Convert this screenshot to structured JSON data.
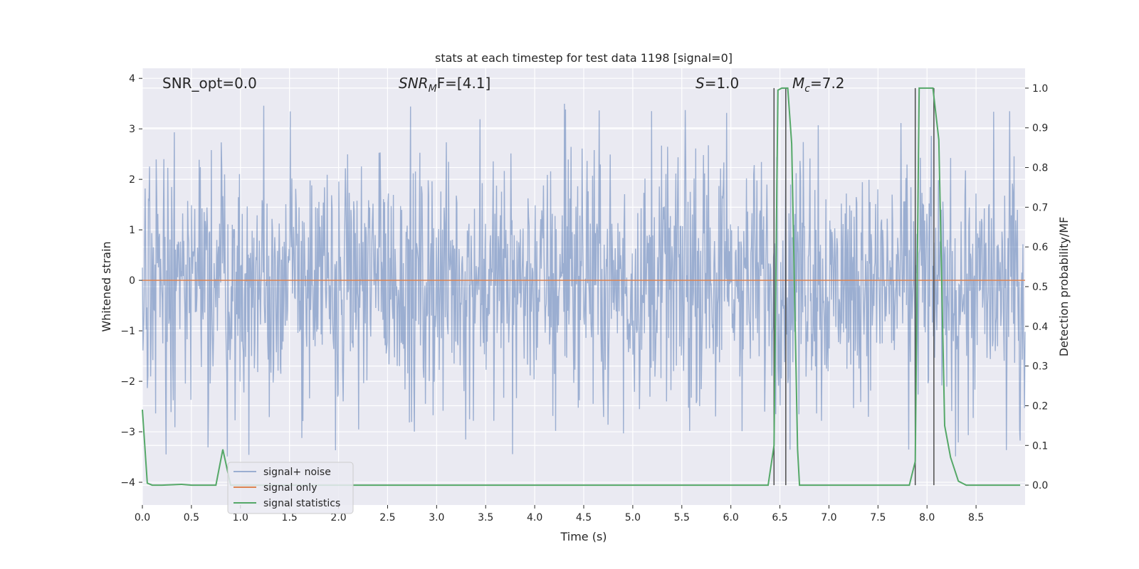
{
  "chart_data": {
    "type": "line",
    "title": "stats at each timestep for test data 1198 [signal=0]",
    "xlabel": "Time (s)",
    "ylabel": "Whitened strain",
    "y2label": "Detection probability/MF",
    "xlim": [
      0.0,
      9.0
    ],
    "ylim": [
      -4.45,
      4.2
    ],
    "y2lim": [
      -0.05,
      1.05
    ],
    "x_ticks": [
      0.0,
      0.5,
      1.0,
      1.5,
      2.0,
      2.5,
      3.0,
      3.5,
      4.0,
      4.5,
      5.0,
      5.5,
      6.0,
      6.5,
      7.0,
      7.5,
      8.0,
      8.5
    ],
    "x_tick_labels": [
      "0.0",
      "0.5",
      "1.0",
      "1.5",
      "2.0",
      "2.5",
      "3.0",
      "3.5",
      "4.0",
      "4.5",
      "5.0",
      "5.5",
      "6.0",
      "6.5",
      "7.0",
      "7.5",
      "8.0",
      "8.5"
    ],
    "y_ticks": [
      4,
      3,
      2,
      1,
      0,
      -1,
      -2,
      -3,
      -4
    ],
    "y_tick_labels": [
      "4",
      "3",
      "2",
      "1",
      "0",
      "−1",
      "−2",
      "−3",
      "−4"
    ],
    "y2_ticks": [
      1.0,
      0.9,
      0.8,
      0.7,
      0.6,
      0.5,
      0.4,
      0.3,
      0.2,
      0.1,
      0.0
    ],
    "y2_tick_labels": [
      "1.0",
      "0.9",
      "0.8",
      "0.7",
      "0.6",
      "0.5",
      "0.4",
      "0.3",
      "0.2",
      "0.1",
      "0.0"
    ],
    "grid": true,
    "legend_location": "lower-left",
    "annotations": [
      {
        "id": "snr-opt",
        "text": "SNR_opt=0.0",
        "italic": false
      },
      {
        "id": "snr-mf",
        "base": "SNR",
        "sub": "M",
        "tail": "F=[4.1]",
        "italic": true
      },
      {
        "id": "s-val",
        "base": "S",
        "sub": "",
        "tail": "=1.0",
        "italic": true
      },
      {
        "id": "mc-val",
        "base": "M",
        "sub": "c",
        "tail": "=7.2",
        "italic": true
      }
    ],
    "series": [
      {
        "name": "signal+ noise",
        "color": "#4c72b0",
        "opacity": 0.5,
        "style": "dense noise trace",
        "envelope_typical": [
          -1.7,
          1.45
        ],
        "envelope_extreme": [
          -4.0,
          3.5
        ]
      },
      {
        "name": "signal only",
        "color": "#dd8452",
        "x": [
          0.0,
          9.0
        ],
        "y": [
          0.0,
          0.0
        ]
      },
      {
        "name": "signal statistics",
        "color": "#55a868",
        "axis": "right",
        "x": [
          0.0,
          0.05,
          0.1,
          0.2,
          0.4,
          0.5,
          0.75,
          0.82,
          0.9,
          1.2,
          6.38,
          6.44,
          6.48,
          6.52,
          6.58,
          6.62,
          6.68,
          6.7,
          6.9,
          7.82,
          7.88,
          7.92,
          7.96,
          8.06,
          8.12,
          8.18,
          8.24,
          8.32,
          8.4,
          8.95
        ],
        "y": [
          0.19,
          0.005,
          0.0,
          0.0,
          0.002,
          0.0,
          0.0,
          0.09,
          0.0,
          0.0,
          0.0,
          0.1,
          0.995,
          1.0,
          1.0,
          0.86,
          0.09,
          0.0,
          0.0,
          0.0,
          0.06,
          1.0,
          1.0,
          1.0,
          0.87,
          0.15,
          0.07,
          0.01,
          0.0,
          0.0
        ]
      }
    ],
    "vlines": {
      "color": "#4d4d4d",
      "x": [
        6.44,
        6.56,
        7.88,
        8.07
      ],
      "y2_range": [
        0.0,
        1.0
      ]
    }
  }
}
